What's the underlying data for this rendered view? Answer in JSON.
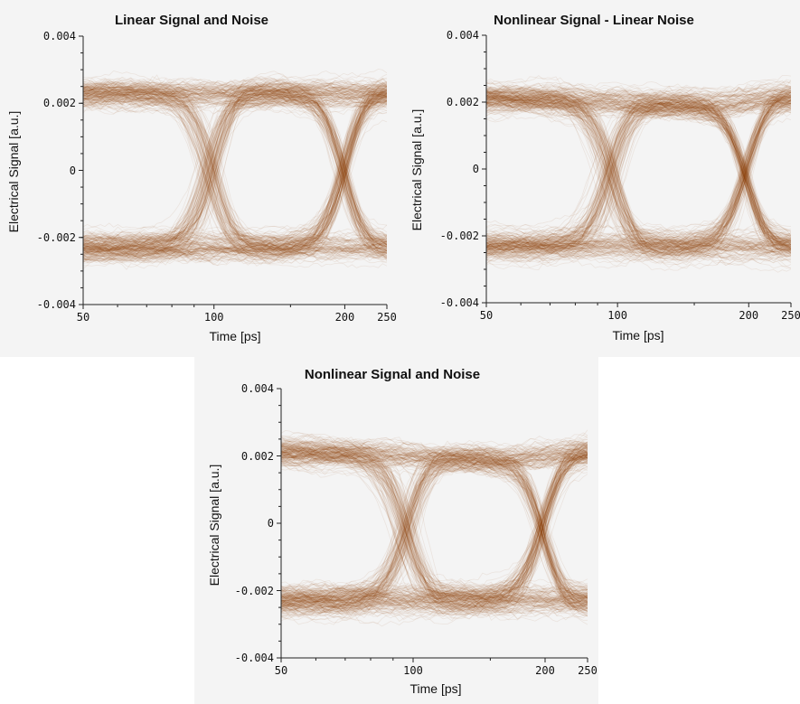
{
  "chart_data": [
    {
      "type": "line",
      "title": "Linear Signal and Noise",
      "xlabel": "Time [ps]",
      "ylabel": "Electrical Signal [a.u.]",
      "xscale": "log",
      "xlim": [
        50,
        250
      ],
      "ylim": [
        -0.004,
        0.004
      ],
      "xticks": [
        50,
        100,
        200,
        250
      ],
      "xtick_labels": [
        "50",
        "100",
        "200",
        "250"
      ],
      "yticks": [
        0.004,
        0.002,
        0,
        -0.002,
        -0.004
      ],
      "ytick_labels": [
        "0.004",
        "0.002",
        "0",
        "-0.002",
        "-0.004"
      ],
      "grid": false,
      "color": "#8b3f0a",
      "eye_crossings": [
        98,
        198
      ],
      "eye_levels": [
        0.0023,
        -0.0023
      ]
    },
    {
      "type": "line",
      "title": "Nonlinear Signal - Linear Noise",
      "xlabel": "Time [ps]",
      "ylabel": "Electrical Signal [a.u.]",
      "xscale": "log",
      "xlim": [
        50,
        250
      ],
      "ylim": [
        -0.004,
        0.004
      ],
      "xticks": [
        50,
        100,
        200,
        250
      ],
      "xtick_labels": [
        "50",
        "100",
        "200",
        "250"
      ],
      "yticks": [
        0.004,
        0.002,
        0,
        -0.002,
        -0.004
      ],
      "ytick_labels": [
        "0.004",
        "0.002",
        "0",
        "-0.002",
        "-0.004"
      ],
      "grid": false,
      "color": "#8b3f0a",
      "eye_crossings": [
        96,
        196
      ],
      "eye_levels": [
        0.002,
        -0.0023
      ]
    },
    {
      "type": "line",
      "title": "Nonlinear Signal and Noise",
      "xlabel": "Time [ps]",
      "ylabel": "Electrical Signal [a.u.]",
      "xscale": "log",
      "xlim": [
        50,
        250
      ],
      "ylim": [
        -0.004,
        0.004
      ],
      "xticks": [
        50,
        100,
        200,
        250
      ],
      "xtick_labels": [
        "50",
        "100",
        "200",
        "250"
      ],
      "yticks": [
        0.004,
        0.002,
        0,
        -0.002,
        -0.004
      ],
      "ytick_labels": [
        "0.004",
        "0.002",
        "0",
        "-0.002",
        "-0.004"
      ],
      "grid": false,
      "color": "#8b3f0a",
      "eye_crossings": [
        96,
        196
      ],
      "eye_levels": [
        0.002,
        -0.0023
      ]
    }
  ]
}
